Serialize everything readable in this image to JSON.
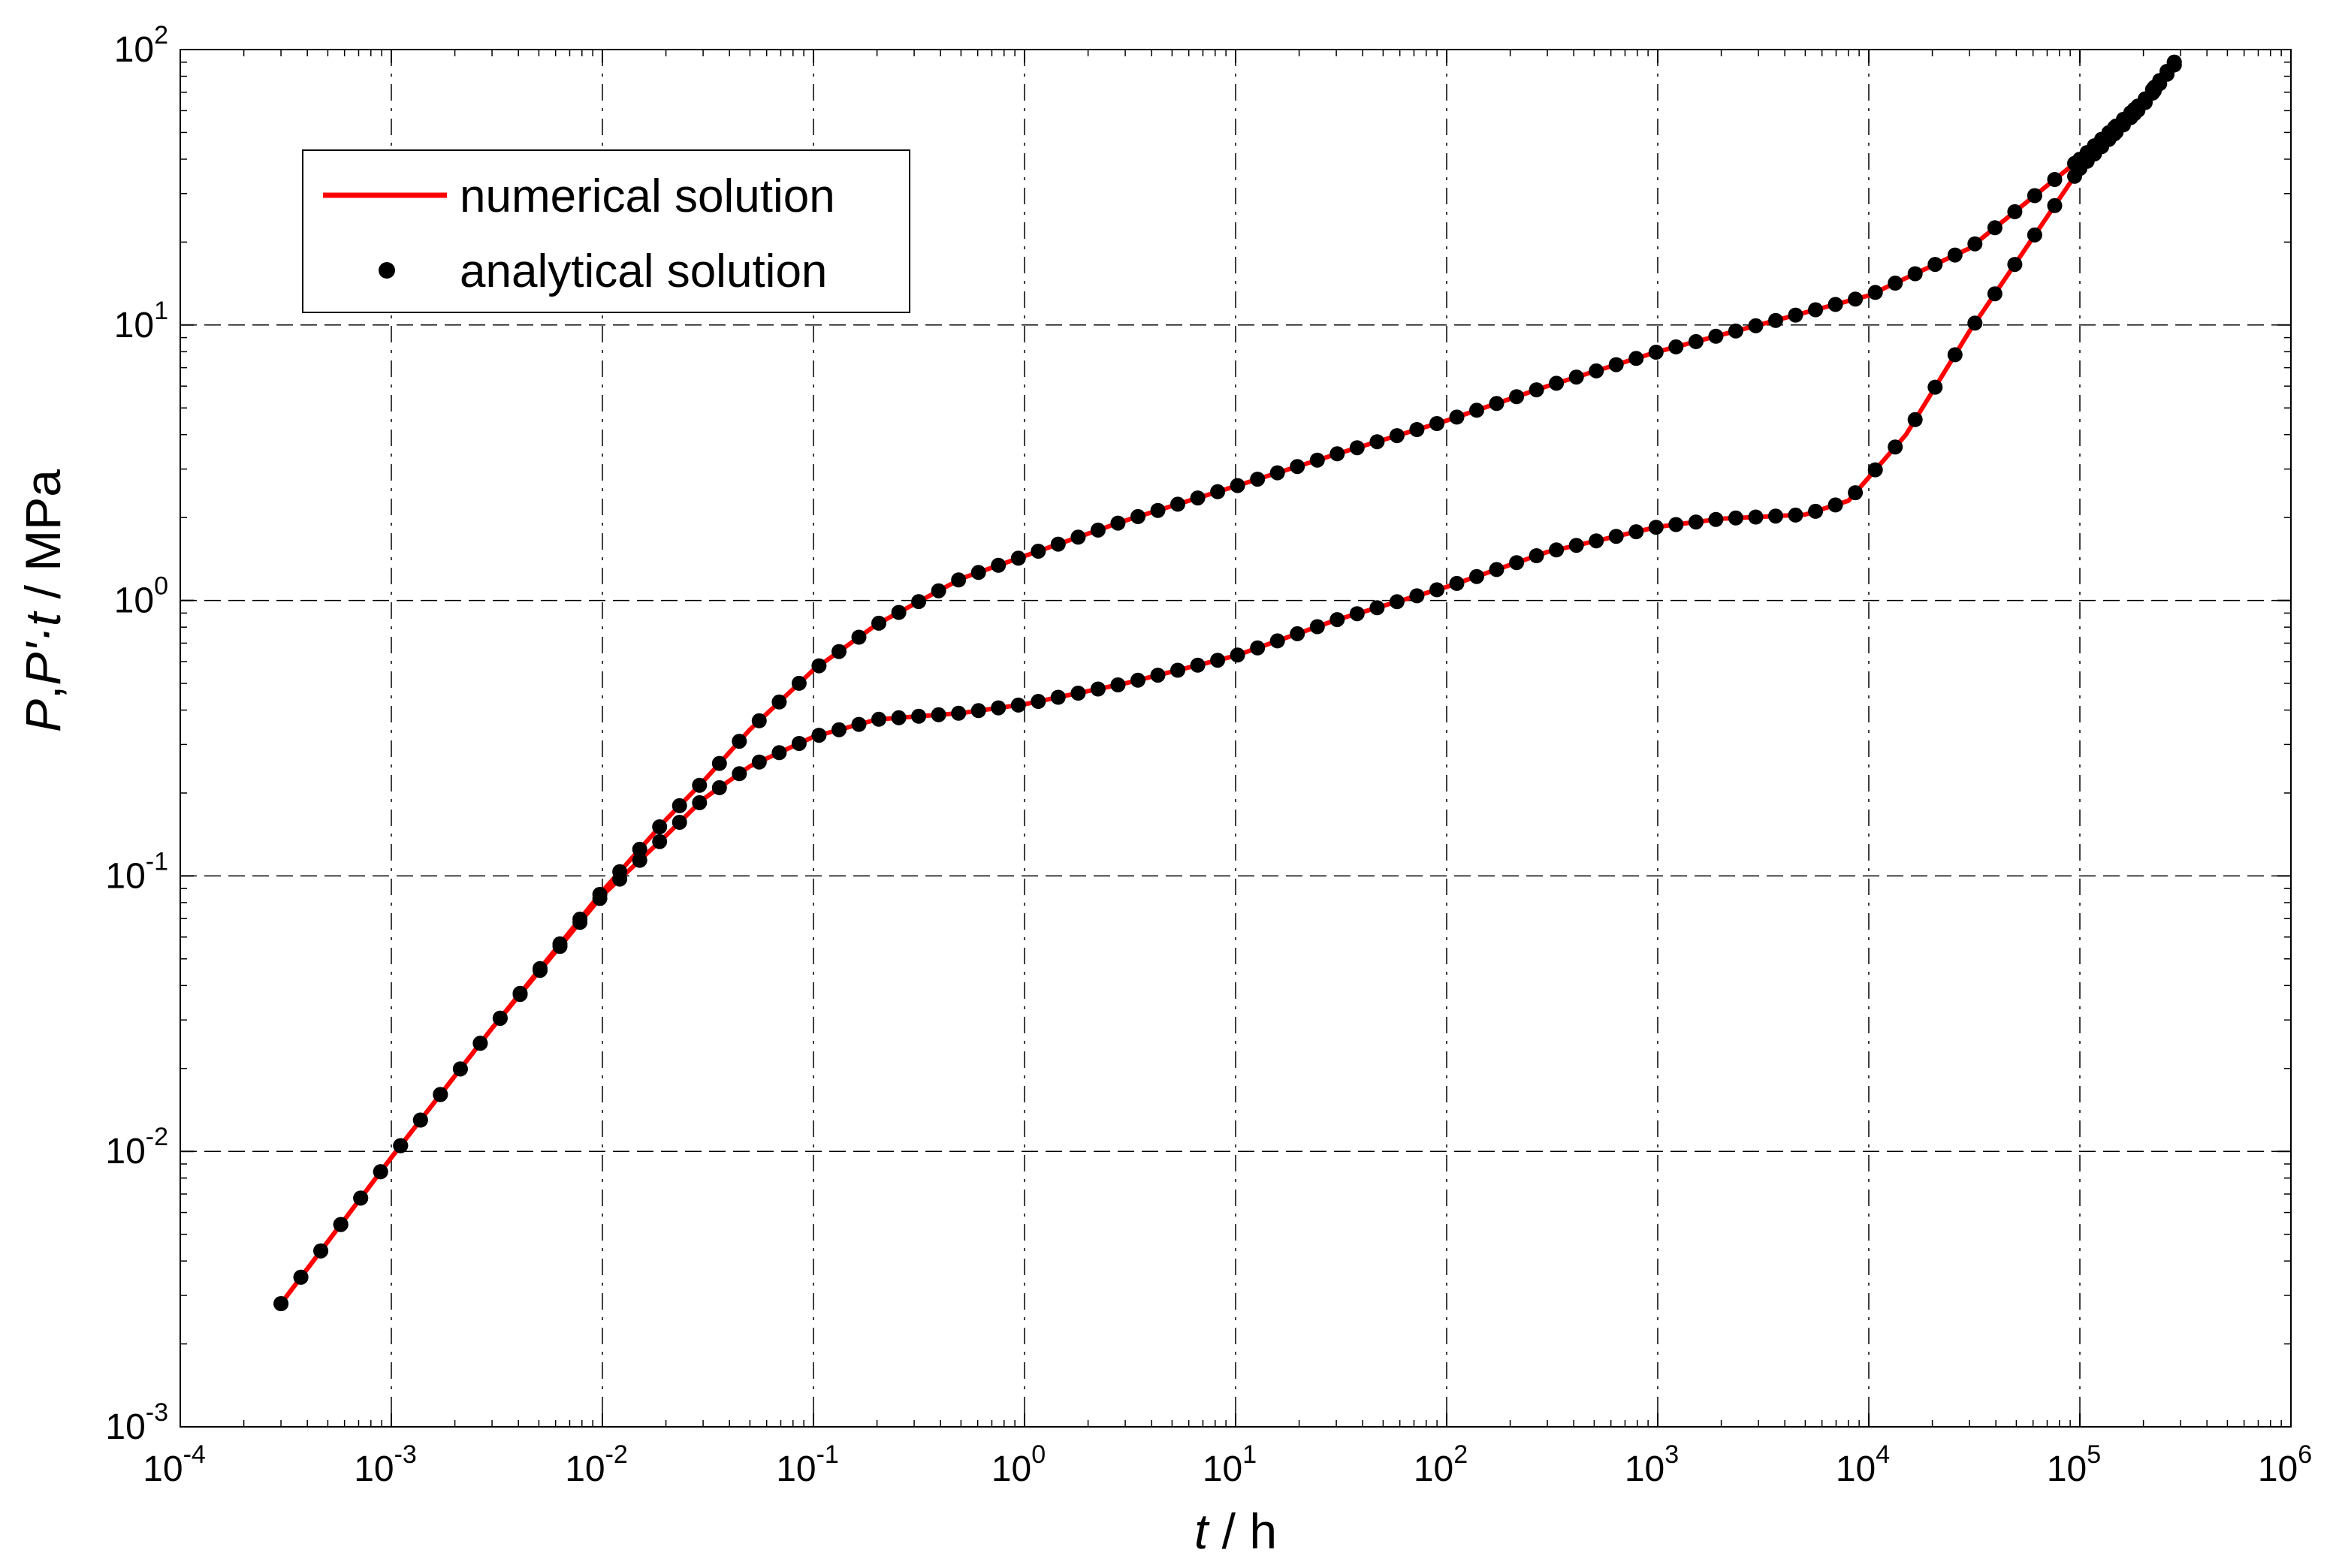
{
  "chart_data": {
    "type": "line",
    "x_scale": "log",
    "y_scale": "log",
    "xlim": [
      0.0001,
      1000000
    ],
    "ylim": [
      0.001,
      100
    ],
    "grid": true,
    "legend_position": "top-left",
    "xlabel": {
      "italic": "t",
      "rest": " / h"
    },
    "ylabel": {
      "italic": "P",
      "mid": ",",
      "italic2": "P'·t",
      "rest": " / MPa"
    },
    "x_ticks": [
      {
        "base": "10",
        "exp": "-4",
        "value": 0.0001
      },
      {
        "base": "10",
        "exp": "-3",
        "value": 0.001
      },
      {
        "base": "10",
        "exp": "-2",
        "value": 0.01
      },
      {
        "base": "10",
        "exp": "-1",
        "value": 0.1
      },
      {
        "base": "10",
        "exp": "0",
        "value": 1
      },
      {
        "base": "10",
        "exp": "1",
        "value": 10
      },
      {
        "base": "10",
        "exp": "2",
        "value": 100
      },
      {
        "base": "10",
        "exp": "3",
        "value": 1000
      },
      {
        "base": "10",
        "exp": "4",
        "value": 10000
      },
      {
        "base": "10",
        "exp": "5",
        "value": 100000
      },
      {
        "base": "10",
        "exp": "6",
        "value": 1000000
      }
    ],
    "y_ticks": [
      {
        "base": "10",
        "exp": "-3",
        "value": 0.001
      },
      {
        "base": "10",
        "exp": "-2",
        "value": 0.01
      },
      {
        "base": "10",
        "exp": "-1",
        "value": 0.1
      },
      {
        "base": "10",
        "exp": "0",
        "value": 1
      },
      {
        "base": "10",
        "exp": "1",
        "value": 10
      },
      {
        "base": "10",
        "exp": "2",
        "value": 100
      }
    ],
    "legend": [
      {
        "label": "numerical solution",
        "marker": "line",
        "color": "#ff0000"
      },
      {
        "label": "analytical solution",
        "marker": "dot",
        "color": "#000000"
      }
    ],
    "curves": [
      {
        "key": "pressure",
        "color": "#ff0000",
        "x": [
          0.0003,
          0.001,
          0.003,
          0.01,
          0.02,
          0.03,
          0.05,
          0.1,
          0.2,
          0.5,
          1,
          3,
          10,
          30,
          100,
          300,
          1000,
          3000,
          10000,
          30000,
          100000,
          200000,
          280000
        ],
        "y": [
          0.0028,
          0.0095,
          0.028,
          0.088,
          0.16,
          0.22,
          0.34,
          0.56,
          0.82,
          1.2,
          1.45,
          1.95,
          2.6,
          3.4,
          4.5,
          6.0,
          8.0,
          10.0,
          12.8,
          19.0,
          40.0,
          65.0,
          90.0
        ]
      },
      {
        "key": "derivative",
        "color": "#ff0000",
        "x": [
          0.0003,
          0.001,
          0.003,
          0.01,
          0.02,
          0.03,
          0.05,
          0.1,
          0.2,
          0.5,
          1,
          3,
          10,
          30,
          100,
          300,
          1000,
          2000,
          5000,
          8000,
          10000,
          15000,
          30000,
          100000,
          200000,
          280000
        ],
        "y": [
          0.0028,
          0.0095,
          0.028,
          0.085,
          0.14,
          0.19,
          0.25,
          0.32,
          0.37,
          0.39,
          0.42,
          0.5,
          0.63,
          0.85,
          1.12,
          1.5,
          1.85,
          1.98,
          2.05,
          2.3,
          2.8,
          4.0,
          9.5,
          37.0,
          63.0,
          88.0
        ]
      }
    ]
  }
}
